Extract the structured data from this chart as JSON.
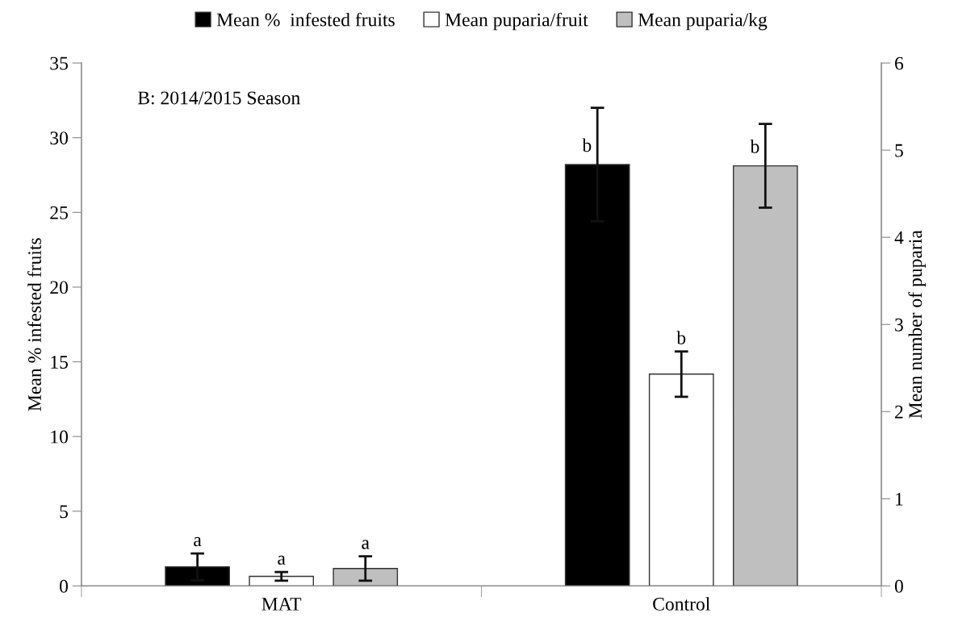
{
  "chart_data": {
    "type": "bar",
    "categories": [
      "MAT",
      "Control"
    ],
    "ylabel": "Mean % infested fruits",
    "y2label": "Mean number of puparia",
    "annotations": [
      "B: 2014/2015 Season"
    ],
    "series": [
      {
        "name": "Mean %  infested fruits",
        "color": "#000000",
        "values": [
          1.27,
          28.2
        ],
        "errors": [
          0.9,
          3.8
        ],
        "value_labels": [
          "a",
          "b"
        ]
      },
      {
        "name": "Mean puparia/fruit",
        "color": "#ffffff",
        "axis": "y2",
        "values": [
          0.11,
          2.43
        ],
        "errors": [
          0.05,
          0.26
        ],
        "value_labels": [
          "a",
          "b"
        ]
      },
      {
        "name": "Mean puparia/kg",
        "color": "#bfbfbf",
        "axis": "y2",
        "values": [
          0.2,
          4.82
        ],
        "errors": [
          0.14,
          0.48
        ],
        "value_labels": [
          "a",
          "b"
        ]
      }
    ],
    "ylim": [
      0,
      35
    ],
    "yticks": [
      0,
      5,
      10,
      15,
      20,
      25,
      30,
      35
    ],
    "y2lim": [
      0,
      6
    ],
    "y2ticks": [
      0,
      1,
      2,
      3,
      4,
      5,
      6
    ],
    "grid": false,
    "legend": "top"
  }
}
